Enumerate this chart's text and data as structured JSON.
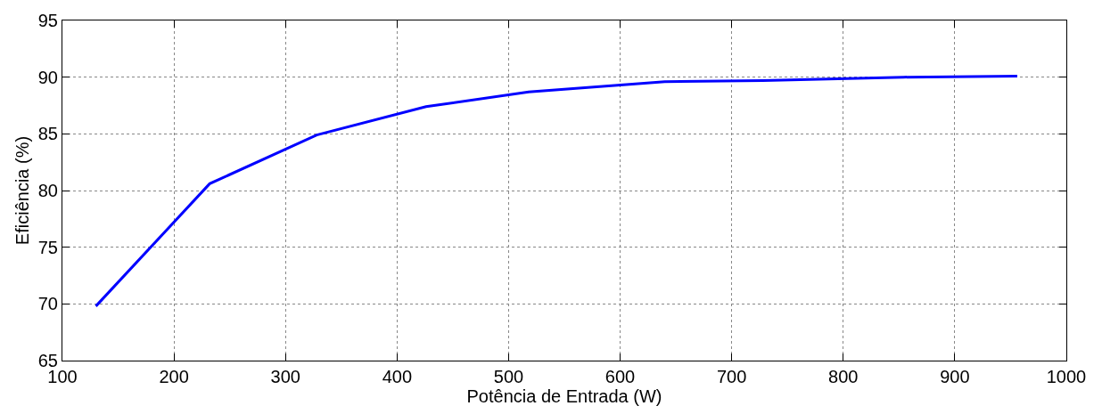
{
  "chart_data": {
    "type": "line",
    "xlabel": "Potência de Entrada (W)",
    "ylabel": "Eficiência (%)",
    "x": [
      130,
      232,
      328,
      426,
      518,
      640,
      728,
      854,
      956
    ],
    "series": [
      {
        "color": "#0000ff",
        "values": [
          69.8,
          80.6,
          84.9,
          87.4,
          88.7,
          89.6,
          89.7,
          90.0,
          90.1
        ]
      }
    ],
    "xlim": [
      100,
      1000
    ],
    "xticks": [
      100,
      200,
      300,
      400,
      500,
      600,
      700,
      800,
      900,
      1000
    ],
    "ylim": [
      65,
      95
    ],
    "yticks": [
      65,
      70,
      75,
      80,
      85,
      90,
      95
    ],
    "grid": true,
    "legend": false,
    "marker": "none",
    "line_style": "solid"
  }
}
